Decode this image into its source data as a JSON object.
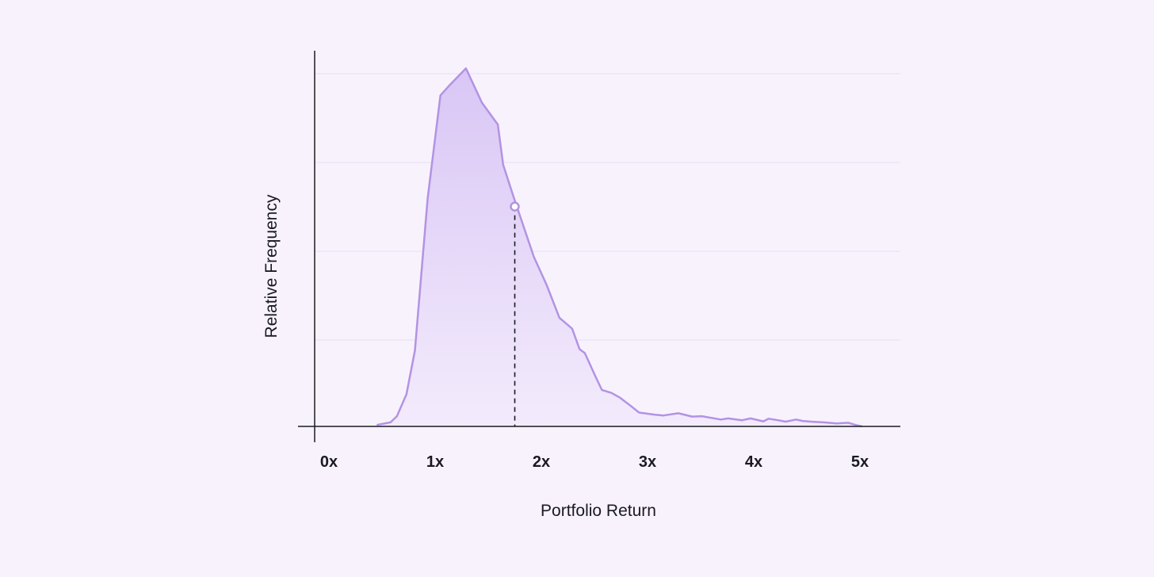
{
  "chart_data": {
    "type": "area",
    "title": "",
    "xlabel": "Portfolio Return",
    "ylabel": "Relative Frequency",
    "xlim": [
      0,
      5
    ],
    "ylim": [
      0,
      1.0
    ],
    "x_ticks": [
      "0x",
      "1x",
      "2x",
      "3x",
      "4x",
      "5x"
    ],
    "x_tick_values": [
      0,
      1,
      2,
      3,
      4,
      5
    ],
    "grid": true,
    "series": [
      {
        "x": [
          0.45,
          0.58,
          0.64,
          0.73,
          0.81,
          0.93,
          1.05,
          1.13,
          1.29,
          1.44,
          1.59,
          1.64,
          1.74,
          1.93,
          2.05,
          2.17,
          2.29,
          2.36,
          2.41,
          2.51,
          2.57,
          2.66,
          2.74,
          2.83,
          2.92,
          3.07,
          3.15,
          3.29,
          3.42,
          3.51,
          3.69,
          3.76,
          3.89,
          3.97,
          4.09,
          4.14,
          4.23,
          4.3,
          4.4,
          4.46,
          4.54,
          4.66,
          4.78,
          4.89,
          4.96,
          5.02
        ],
        "y": [
          0.004,
          0.011,
          0.028,
          0.088,
          0.208,
          0.626,
          0.908,
          0.934,
          0.982,
          0.888,
          0.828,
          0.718,
          0.628,
          0.465,
          0.388,
          0.298,
          0.268,
          0.212,
          0.201,
          0.137,
          0.1,
          0.092,
          0.079,
          0.059,
          0.038,
          0.032,
          0.03,
          0.036,
          0.027,
          0.028,
          0.019,
          0.022,
          0.017,
          0.022,
          0.014,
          0.021,
          0.017,
          0.013,
          0.019,
          0.015,
          0.013,
          0.011,
          0.008,
          0.01,
          0.004,
          0.0
        ]
      }
    ],
    "marker": {
      "x": 1.75,
      "y": 0.603,
      "style": "dashed drop line"
    },
    "colors": {
      "line": "#b393e3",
      "fill_top": "#d9c6f5",
      "fill_bottom": "#f3ebfc",
      "grid": "#e9def5",
      "axis": "#1a1a24",
      "background": "#f8f2fd"
    }
  }
}
